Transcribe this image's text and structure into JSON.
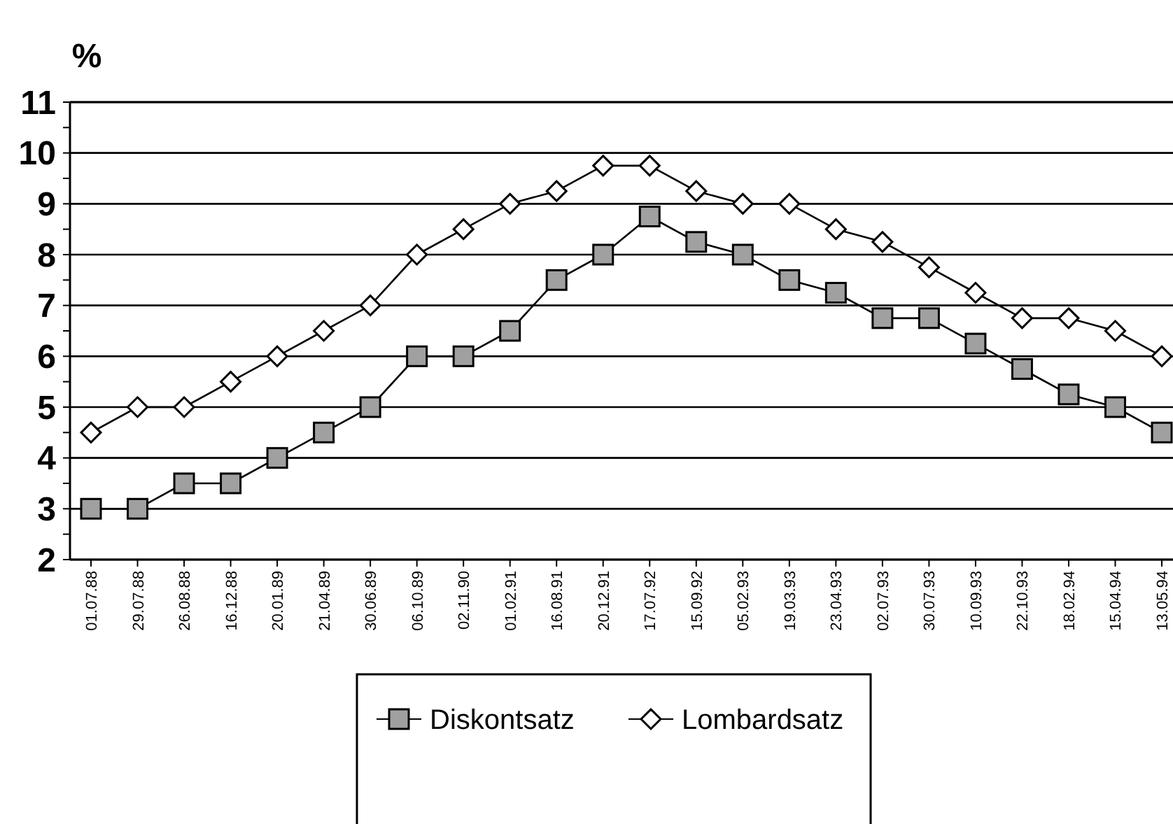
{
  "chart_data": {
    "type": "line",
    "ylabel": "%",
    "categories": [
      "01.07.88",
      "29.07.88",
      "26.08.88",
      "16.12.88",
      "20.01.89",
      "21.04.89",
      "30.06.89",
      "06.10.89",
      "02.11.90",
      "01.02.91",
      "16.08.91",
      "20.12.91",
      "17.07.92",
      "15.09.92",
      "05.02.93",
      "19.03.93",
      "23.04.93",
      "02.07.93",
      "30.07.93",
      "10.09.93",
      "22.10.93",
      "18.02.94",
      "15.04.94",
      "13.05.94"
    ],
    "series": [
      {
        "name": "Diskontsatz",
        "color": "#a0a0a0",
        "marker": "square",
        "values": [
          3,
          3,
          3.5,
          3.5,
          4,
          4.5,
          5,
          6,
          6,
          6.5,
          7.5,
          8,
          8.75,
          8.25,
          8,
          7.5,
          7.25,
          6.75,
          6.75,
          6.25,
          5.75,
          5.25,
          5,
          4.5
        ]
      },
      {
        "name": "Lombardsatz",
        "color": "#ffffff",
        "marker": "diamond",
        "values": [
          4.5,
          5,
          5,
          5.5,
          6,
          6.5,
          7,
          8,
          8.5,
          9,
          9.25,
          9.75,
          9.75,
          9.25,
          9,
          9,
          8.5,
          8.25,
          7.75,
          7.25,
          6.75,
          6.75,
          6.5,
          6
        ]
      }
    ],
    "ylim": [
      2,
      11
    ],
    "yticks": [
      2,
      {
        "value": 2.5,
        "label": null
      },
      3,
      {
        "value": 3.5,
        "label": null
      },
      4,
      {
        "value": 4.5,
        "label": null
      },
      5,
      {
        "value": 5.5,
        "label": null
      },
      6,
      {
        "value": 6.5,
        "label": null
      },
      7,
      {
        "value": 7.5,
        "label": null
      },
      8,
      {
        "value": 8.5,
        "label": null
      },
      9,
      {
        "value": 9.5,
        "label": null
      },
      10,
      {
        "value": 10.5,
        "label": null
      },
      11
    ],
    "grid": "y",
    "legend": "bottom"
  }
}
